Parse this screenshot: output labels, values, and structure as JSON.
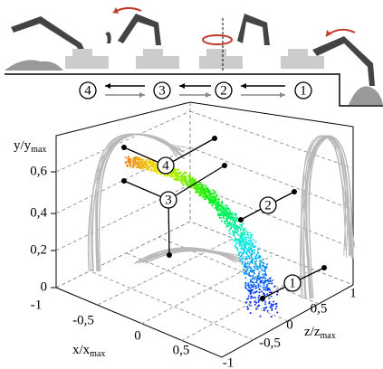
{
  "stages": [
    "4",
    "3",
    "2",
    "1"
  ],
  "plot": {
    "y_axis": {
      "label": "y/y",
      "sub": "max",
      "ticks": [
        "0",
        "0,2",
        "0,4",
        "0,6"
      ]
    },
    "x_axis": {
      "label": "x/x",
      "sub": "max",
      "ticks": [
        "-1",
        "-0,5",
        "0",
        "0,5"
      ]
    },
    "z_axis": {
      "label": "z/z",
      "sub": "max",
      "ticks": [
        "-1",
        "-0,5",
        "0",
        "0,5",
        "1"
      ]
    },
    "callouts": [
      "1",
      "2",
      "3",
      "4"
    ]
  }
}
